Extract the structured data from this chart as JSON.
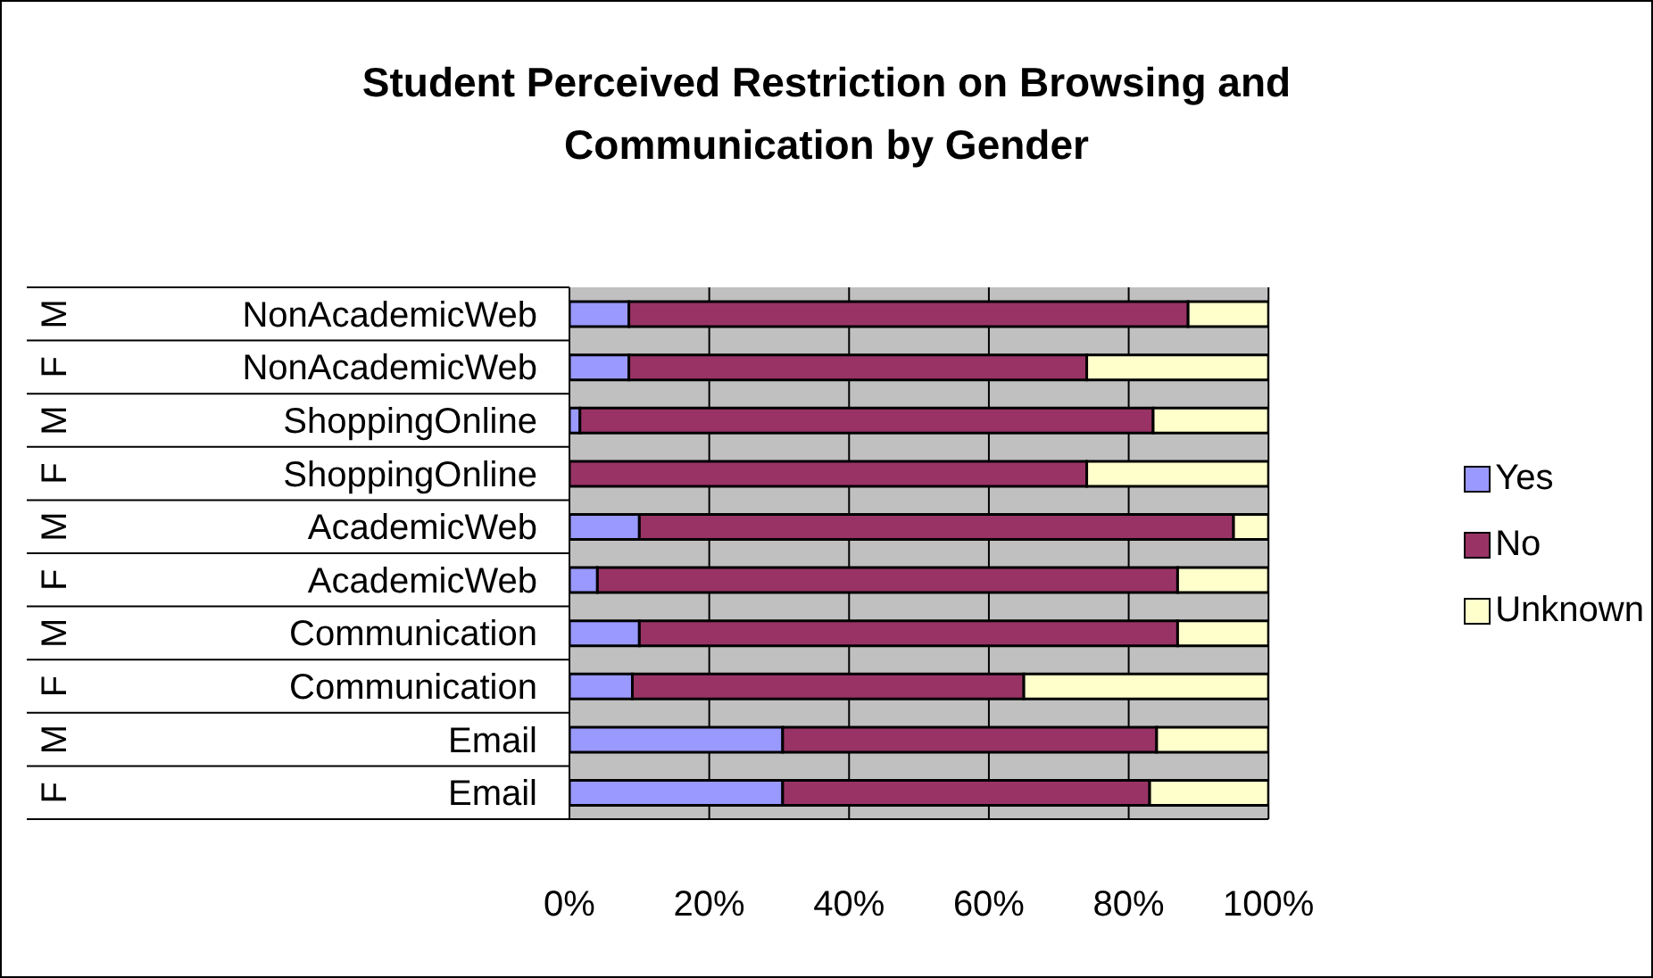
{
  "chart_data": {
    "type": "bar",
    "orientation": "horizontal",
    "stacked": true,
    "title": "Student Perceived Restriction on Browsing and Communication by Gender",
    "categories": [
      "NonAcademicWeb",
      "NonAcademicWeb",
      "ShoppingOnline",
      "ShoppingOnline",
      "AcademicWeb",
      "AcademicWeb",
      "Communication",
      "Communication",
      "Email",
      "Email"
    ],
    "annotations": [
      "M",
      "F",
      "M",
      "F",
      "M",
      "F",
      "M",
      "F",
      "M",
      "F"
    ],
    "series": [
      {
        "name": "Yes",
        "color": "#9999ff",
        "values": [
          8.5,
          8.5,
          1.5,
          0,
          10,
          4,
          10,
          9,
          30.5,
          30.5
        ]
      },
      {
        "name": "No",
        "color": "#993366",
        "values": [
          80,
          65.5,
          82,
          74,
          85,
          83,
          77,
          56,
          53.5,
          52.5
        ]
      },
      {
        "name": "Unknown",
        "color": "#ffffcc",
        "values": [
          11.5,
          26,
          16.5,
          26,
          5,
          13,
          13,
          35,
          16,
          17
        ]
      }
    ],
    "xlim": [
      0,
      100
    ],
    "xticks": [
      {
        "value": 0,
        "label": "0%"
      },
      {
        "value": 20,
        "label": "20%"
      },
      {
        "value": 40,
        "label": "40%"
      },
      {
        "value": 60,
        "label": "60%"
      },
      {
        "value": 80,
        "label": "80%"
      },
      {
        "value": 100,
        "label": "100%"
      }
    ],
    "grid": "x",
    "legend": "right"
  }
}
